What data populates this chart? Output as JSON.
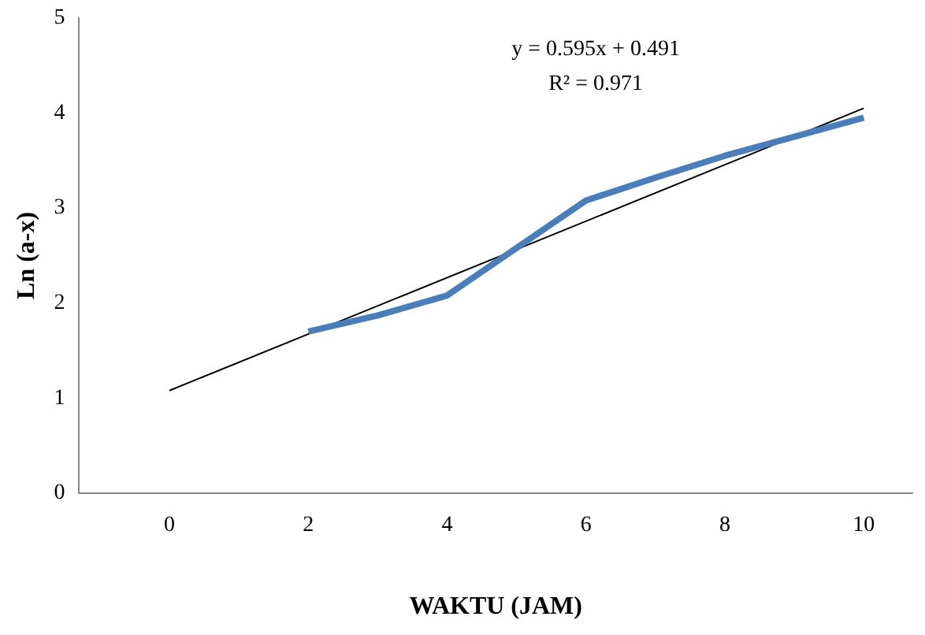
{
  "chart_data": {
    "type": "line",
    "xlabel": "WAKTU (JAM)",
    "ylabel": "Ln (a-x)",
    "xlim": [
      -1.3,
      10.7
    ],
    "xticks": [
      0,
      2,
      4,
      6,
      8,
      10
    ],
    "ylim": [
      0,
      5
    ],
    "yticks": [
      0,
      1,
      2,
      3,
      4,
      5
    ],
    "series": [
      {
        "color": "#4a7ebb",
        "x": [
          2,
          3,
          4,
          6,
          7,
          8,
          10
        ],
        "values": [
          1.7,
          1.87,
          2.08,
          3.08,
          3.32,
          3.55,
          3.95
        ]
      },
      {
        "color": "#000000",
        "x": [
          0,
          10
        ],
        "values": [
          1.08,
          4.05
        ]
      }
    ],
    "annotations": [
      "y = 0.595x + 0.491",
      "R² = 0.971"
    ],
    "grid": false,
    "legend": false,
    "marker": "none"
  }
}
